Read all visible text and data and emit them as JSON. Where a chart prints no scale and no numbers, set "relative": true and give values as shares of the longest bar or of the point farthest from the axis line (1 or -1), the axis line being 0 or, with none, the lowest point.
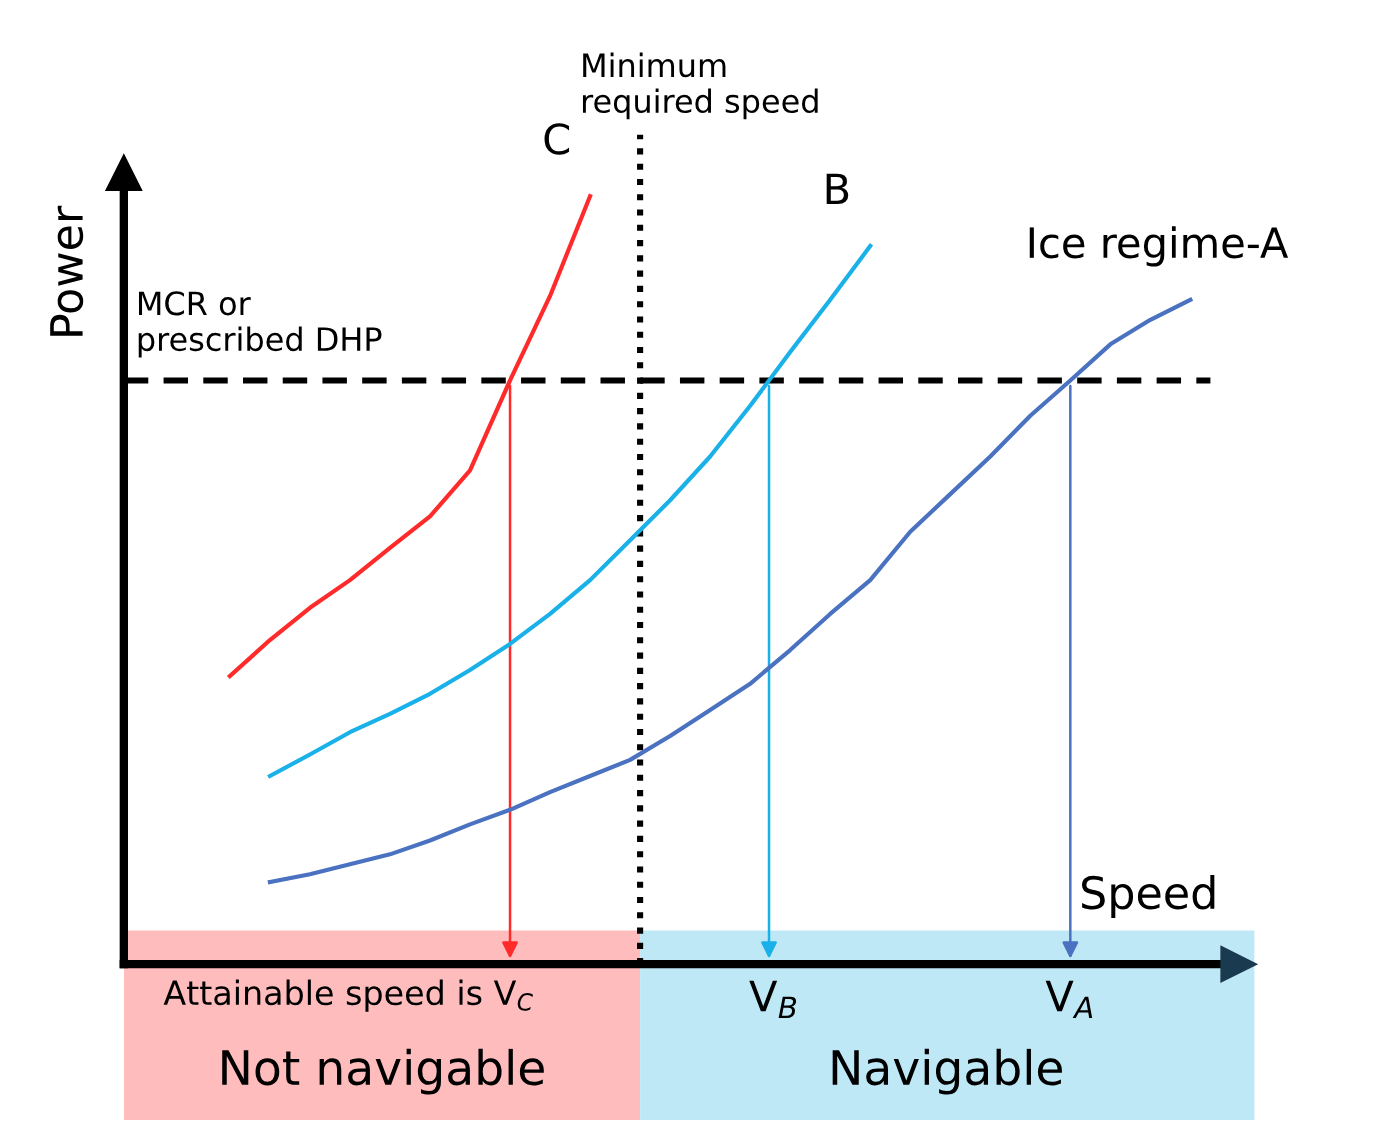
{
  "chart_data": {
    "type": "line",
    "relative": true,
    "ylabel": "Power",
    "xlabel": "Speed",
    "legend": false,
    "categories": [
      null,
      null,
      null,
      null,
      null,
      null,
      null,
      null,
      null,
      null,
      null,
      null,
      null,
      null,
      null,
      null,
      null,
      null,
      null,
      null,
      null,
      null,
      null,
      null,
      null
    ],
    "series": [
      {
        "name": "C",
        "color": "#ff2a2a",
        "values": [
          0.375,
          0.422,
          0.464,
          0.5,
          0.542,
          0.583,
          0.643,
          0.76,
          0.87,
          1,
          null,
          null,
          null,
          null,
          null,
          null,
          null,
          null,
          null,
          null,
          null,
          null,
          null,
          null,
          null
        ]
      },
      {
        "name": "B",
        "color": "#1ab0e8",
        "values": [
          null,
          0.245,
          0.273,
          0.302,
          0.326,
          0.352,
          0.383,
          0.417,
          0.456,
          0.5,
          0.552,
          0.604,
          0.661,
          0.727,
          0.797,
          0.865,
          0.935,
          null,
          null,
          null,
          null,
          null,
          null,
          null,
          null
        ]
      },
      {
        "name": "Ice regime-A",
        "color": "#4a72c0",
        "values": [
          null,
          0.107,
          0.117,
          0.13,
          0.143,
          0.161,
          0.182,
          0.201,
          0.224,
          0.245,
          0.266,
          0.297,
          0.331,
          0.365,
          0.409,
          0.456,
          0.5,
          0.563,
          0.612,
          0.661,
          0.714,
          0.76,
          0.807,
          0.839,
          0.865
        ]
      }
    ],
    "ref_lines": [
      {
        "axis": "y",
        "value": 0.76,
        "label": "MCR or\nprescribed DHP",
        "line_style": "dashed",
        "color": "#000000"
      }
    ],
    "annotations": [
      "Minimum\nrequired speed",
      "Attainable speed is V$_{C}$",
      "V$_{B}$",
      "V$_{A}$",
      "Not navigable",
      "Navigable"
    ]
  }
}
